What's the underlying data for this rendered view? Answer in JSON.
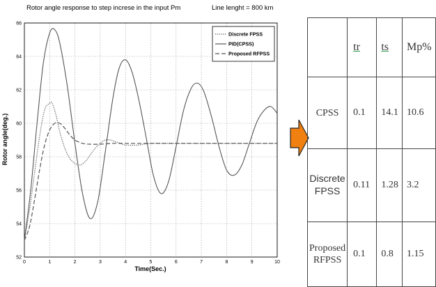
{
  "chart_data": {
    "type": "line",
    "title": "Rotor angle response to step increse in the input Pm",
    "note": "Line lenght = 800 km",
    "xlabel": "Time(Sec.)",
    "ylabel": "Rotor angle(deg.)",
    "xlim": [
      0,
      10
    ],
    "ylim": [
      52,
      66
    ],
    "xticks": [
      0,
      1,
      2,
      3,
      4,
      5,
      6,
      7,
      8,
      9,
      10
    ],
    "yticks": [
      52,
      54,
      56,
      58,
      60,
      62,
      64,
      66
    ],
    "grid": true,
    "legend_position": "top-right",
    "series": [
      {
        "name": "Discrete FPSS",
        "style": "dotted",
        "x": [
          0,
          0.2,
          0.4,
          0.6,
          0.8,
          1.0,
          1.1,
          1.25,
          1.4,
          1.6,
          1.8,
          2.0,
          2.2,
          2.4,
          2.6,
          2.8,
          3.0,
          3.2,
          3.4,
          3.6,
          3.8,
          4.0,
          4.5,
          5.0,
          6.0,
          7.0,
          8.0,
          9.0,
          10.0
        ],
        "y": [
          53.0,
          54.8,
          57.0,
          59.2,
          60.8,
          61.2,
          61.2,
          60.5,
          59.5,
          58.5,
          57.9,
          57.6,
          57.5,
          57.7,
          58.1,
          58.5,
          58.8,
          59.0,
          59.0,
          58.9,
          58.8,
          58.7,
          58.7,
          58.8,
          58.8,
          58.8,
          58.8,
          58.8,
          58.8
        ]
      },
      {
        "name": "PID(CPSS)",
        "style": "solid",
        "x": [
          0,
          0.25,
          0.5,
          0.75,
          1.0,
          1.2,
          1.4,
          1.7,
          2.0,
          2.3,
          2.6,
          2.9,
          3.2,
          3.5,
          3.75,
          4.0,
          4.25,
          4.5,
          4.8,
          5.1,
          5.4,
          5.7,
          6.0,
          6.3,
          6.6,
          6.85,
          7.1,
          7.4,
          7.7,
          8.0,
          8.3,
          8.6,
          8.9,
          9.2,
          9.5,
          9.75,
          10.0
        ],
        "y": [
          53.0,
          56.0,
          60.0,
          63.6,
          65.4,
          65.6,
          64.8,
          62.2,
          58.8,
          55.8,
          54.3,
          55.3,
          58.3,
          61.5,
          63.3,
          63.8,
          63.1,
          61.6,
          59.3,
          56.9,
          55.8,
          56.5,
          58.6,
          60.8,
          62.1,
          62.4,
          61.9,
          60.4,
          58.6,
          57.2,
          56.9,
          57.5,
          58.8,
          60.1,
          60.8,
          61.0,
          60.6
        ]
      },
      {
        "name": "Proposed RFPSS",
        "style": "dashed",
        "x": [
          0,
          0.2,
          0.4,
          0.6,
          0.8,
          1.0,
          1.2,
          1.4,
          1.6,
          1.8,
          2.0,
          2.3,
          2.6,
          3.0,
          3.5,
          4.0,
          5.0,
          6.0,
          7.0,
          8.0,
          9.0,
          10.0
        ],
        "y": [
          53.0,
          53.8,
          55.4,
          57.2,
          58.7,
          59.6,
          60.0,
          60.0,
          59.7,
          59.3,
          59.0,
          58.8,
          58.75,
          58.75,
          58.8,
          58.8,
          58.8,
          58.8,
          58.8,
          58.8,
          58.8,
          58.8
        ]
      }
    ]
  },
  "arrow": {
    "color": "#f08010"
  },
  "table": {
    "headers": [
      "tr",
      "ts",
      "Mp%"
    ],
    "rows": [
      {
        "label": "CPSS",
        "tr": "0.1",
        "ts": "14.1",
        "mp": "10.6"
      },
      {
        "label1": "Discrete",
        "label2": "FPSS",
        "tr": "0.11",
        "ts": "1.28",
        "mp": "3.2"
      },
      {
        "label1": "Proposed",
        "label2": "RFPSS",
        "tr": "0.1",
        "ts": "0.8",
        "mp": "1.15"
      }
    ]
  }
}
